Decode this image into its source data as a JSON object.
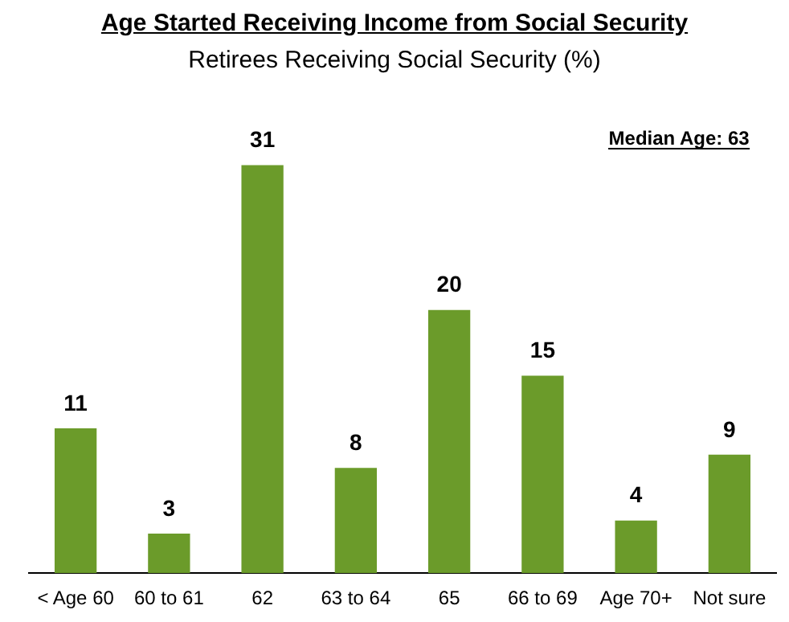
{
  "chart_data": {
    "type": "bar",
    "title": "Age Started Receiving Income from Social Security",
    "subtitle": "Retirees Receiving Social Security (%)",
    "categories": [
      "< Age 60",
      "60 to 61",
      "62",
      "63 to 64",
      "65",
      "66 to 69",
      "Age 70+",
      "Not sure"
    ],
    "values": [
      11,
      3,
      31,
      8,
      20,
      15,
      4,
      9
    ],
    "color": "#6b9b2a",
    "data_labels": true,
    "grid": false,
    "legend": false,
    "annotations": [
      "Median Age: 63"
    ]
  }
}
